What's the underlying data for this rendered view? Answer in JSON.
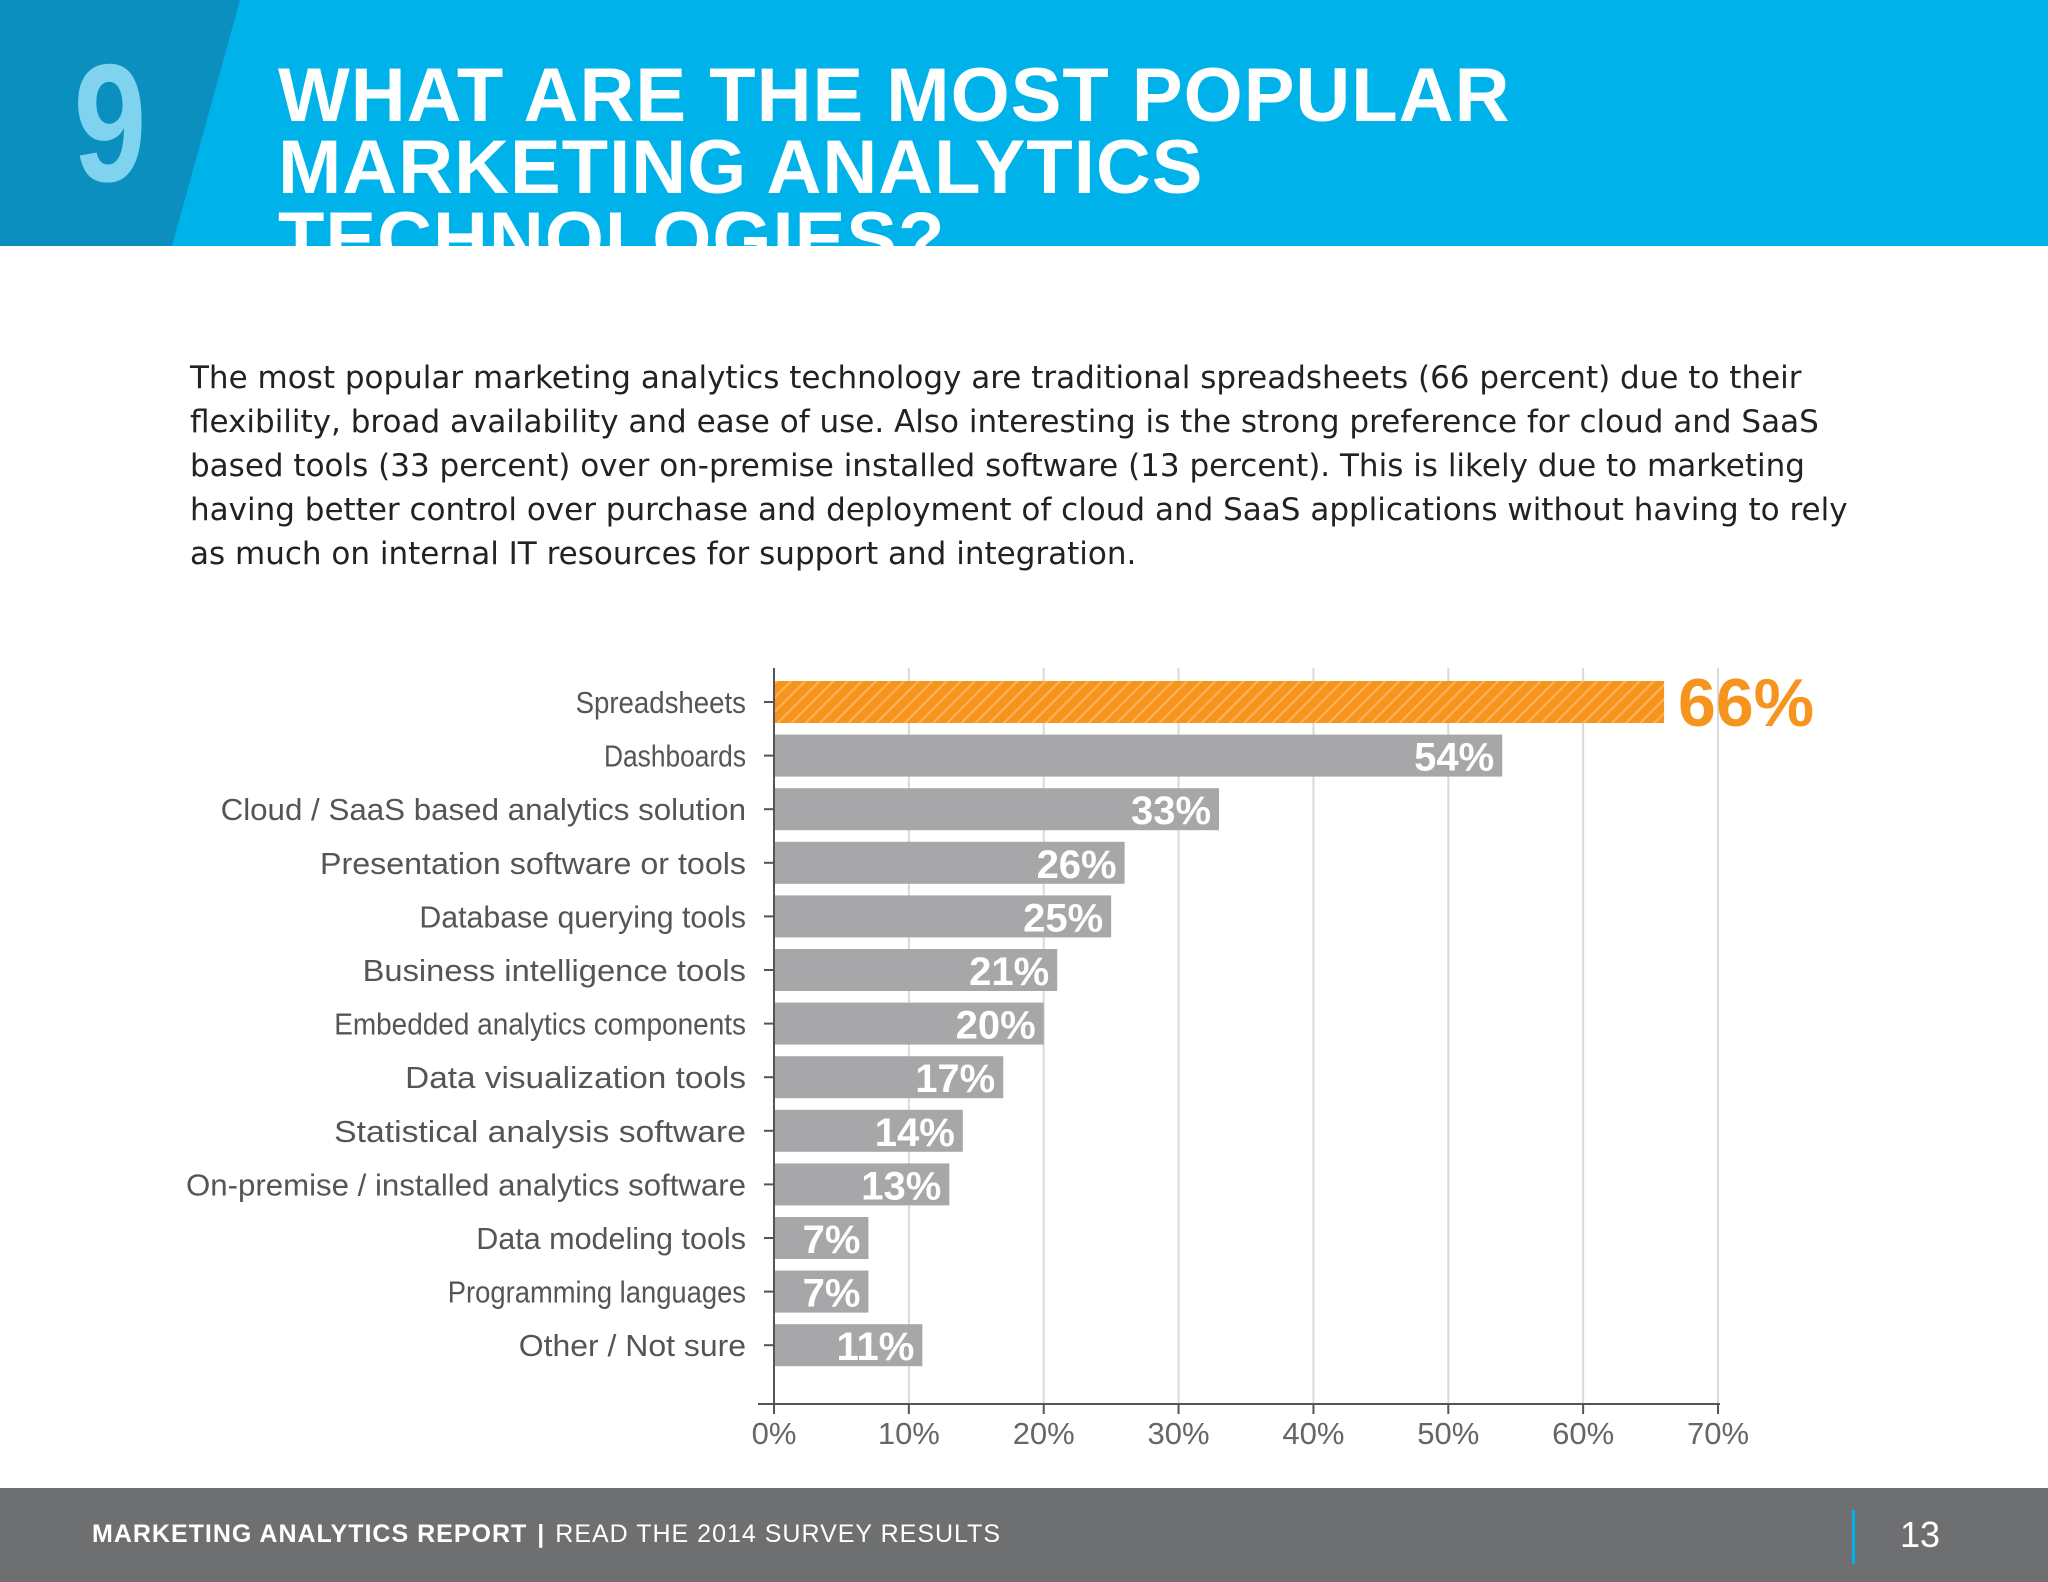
{
  "header": {
    "section_number": "9",
    "title": "WHAT ARE THE MOST POPULAR MARKETING ANALYTICS TECHNOLOGIES?",
    "band_color": "#00b2ea",
    "number_block_color": "#0a8fbe"
  },
  "intro": {
    "text": "The most popular marketing analytics technology are traditional spreadsheets (66 percent) due to their flexibility, broad availability and ease of use. Also interesting is the strong preference for cloud and SaaS based tools (33 percent) over on-premise installed software (13  percent). This is likely due to marketing having better control over purchase and deployment of cloud and SaaS applications without having to rely as much on internal IT resources for support and integration."
  },
  "chart_data": {
    "type": "bar",
    "orientation": "horizontal",
    "title": "",
    "xlabel": "",
    "ylabel": "",
    "xlim": [
      0,
      70
    ],
    "grid": true,
    "categories": [
      "Spreadsheets",
      "Dashboards",
      "Cloud / SaaS based analytics solution",
      "Presentation software or tools",
      "Database querying tools",
      "Business intelligence tools",
      "Embedded analytics components",
      "Data visualization tools",
      "Statistical analysis software",
      "On-premise / installed analytics software",
      "Data modeling tools",
      "Programming languages",
      "Other / Not sure"
    ],
    "values": [
      66,
      54,
      33,
      26,
      25,
      21,
      20,
      17,
      14,
      13,
      7,
      7,
      11
    ],
    "data_labels": [
      "66%",
      "54%",
      "33%",
      "26%",
      "25%",
      "21%",
      "20%",
      "17%",
      "14%",
      "13%",
      "7%",
      "7%",
      "11%"
    ],
    "x_ticks": [
      "0%",
      "10%",
      "20%",
      "30%",
      "40%",
      "50%",
      "60%",
      "70%"
    ],
    "highlight_index": 0,
    "colors": {
      "bar": "#a7a6a9",
      "highlight": "#f7941d",
      "highlight_label": "#f7941d",
      "bar_label": "#ffffff",
      "grid": "#d9d9d9",
      "axis": "#555555",
      "category_label": "#555555",
      "tick_label": "#666666"
    }
  },
  "footer": {
    "report_name": "MARKETING ANALYTICS REPORT",
    "separator": "|",
    "tagline": "READ THE 2014 SURVEY RESULTS",
    "page_number": "13"
  }
}
